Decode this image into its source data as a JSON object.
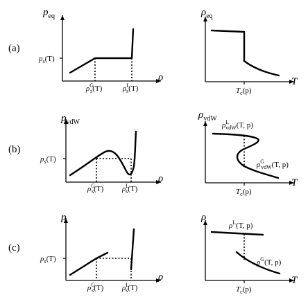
{
  "rows": [
    {
      "row_label": "(a)",
      "left": {
        "y_axis": {
          "sym": "p",
          "sub": "eq"
        },
        "x_axis": {
          "sym": "ρ"
        },
        "y_tick": {
          "sym": "p",
          "sub": "s",
          "arg": "(T)"
        },
        "x_tick_1": {
          "sym": "ρ",
          "sub": "s",
          "sup": "G",
          "arg": "(T)"
        },
        "x_tick_2": {
          "sym": "ρ",
          "sub": "s",
          "sup": "L",
          "arg": "(T)"
        }
      },
      "right": {
        "y_axis": {
          "sym": "ρ",
          "sub": "eq"
        },
        "x_axis": {
          "sym": "T"
        },
        "x_tick": {
          "sym": "T",
          "sub": "c",
          "arg": "(p)"
        }
      }
    },
    {
      "row_label": "(b)",
      "left": {
        "y_axis": {
          "sym": "p",
          "sub": "vdW"
        },
        "x_axis": {
          "sym": "ρ"
        },
        "y_tick": {
          "sym": "p",
          "sub": "s",
          "arg": "(T)"
        },
        "x_tick_1": {
          "sym": "ρ",
          "sub": "s",
          "sup": "G",
          "arg": "(T)"
        },
        "x_tick_2": {
          "sym": "ρ",
          "sub": "s",
          "sup": "L",
          "arg": "(T)"
        }
      },
      "right": {
        "y_axis": {
          "sym": "ρ",
          "sub": "vdW"
        },
        "x_axis": {
          "sym": "T"
        },
        "x_tick": {
          "sym": "T",
          "sub": "c",
          "arg": "(p)"
        },
        "upper_label": {
          "sym": "ρ",
          "sub": "vdW",
          "sup": "L",
          "arg": "(T, p)"
        },
        "lower_label": {
          "sym": "ρ",
          "sub": "vdW",
          "sup": "G",
          "arg": "(T, p)"
        }
      }
    },
    {
      "row_label": "(c)",
      "left": {
        "y_axis": {
          "sym": "p",
          "sub": ""
        },
        "x_axis": {
          "sym": "ρ"
        },
        "y_tick": {
          "sym": "p",
          "sub": "s",
          "arg": "(T)"
        },
        "x_tick_1": {
          "sym": "ρ",
          "sub": "s",
          "sup": "G",
          "arg": "(T)"
        },
        "x_tick_2": {
          "sym": "ρ",
          "sub": "s",
          "sup": "L",
          "arg": "(T)"
        }
      },
      "right": {
        "y_axis": {
          "sym": "ρ",
          "sub": ""
        },
        "x_axis": {
          "sym": "T"
        },
        "x_tick": {
          "sym": "T",
          "sub": "c",
          "arg": "(p)"
        },
        "upper_label": {
          "sym": "ρ",
          "sup": "L",
          "arg": "(T, p)"
        },
        "lower_label": {
          "sym": "ρ",
          "sup": "G",
          "arg": "(T, p)"
        }
      }
    }
  ]
}
